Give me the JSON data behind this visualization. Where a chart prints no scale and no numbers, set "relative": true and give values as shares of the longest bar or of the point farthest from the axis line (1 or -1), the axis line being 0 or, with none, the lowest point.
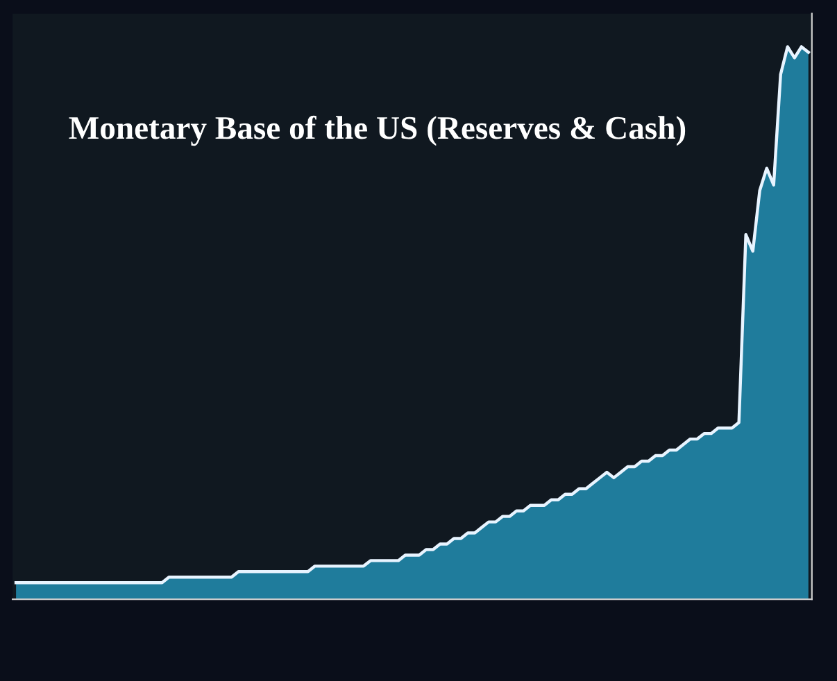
{
  "chart_data": {
    "type": "area",
    "title": "Monetary Base of the US (Reserves & Cash)",
    "relative": true,
    "grid": false,
    "legend": false,
    "categories": [
      null,
      null,
      null,
      null,
      null,
      null,
      null,
      null,
      null,
      null,
      null,
      null,
      null,
      null,
      null,
      null,
      null,
      null,
      null,
      null,
      null,
      null,
      null,
      null,
      null,
      null,
      null,
      null,
      null,
      null,
      null,
      null,
      null,
      null,
      null,
      null,
      null,
      null,
      null,
      null,
      null,
      null,
      null,
      null,
      null,
      null,
      null,
      null,
      null,
      null,
      null,
      null,
      null,
      null,
      null,
      null,
      null,
      null,
      null,
      null,
      null,
      null,
      null,
      null,
      null,
      null,
      null,
      null,
      null,
      null,
      null,
      null,
      null,
      null,
      null,
      null,
      null,
      null,
      null,
      null,
      null,
      null,
      null,
      null,
      null,
      null,
      null,
      null,
      null,
      null,
      null,
      null,
      null,
      null,
      null,
      null,
      null,
      null,
      null,
      null,
      null,
      null,
      null,
      null,
      null,
      null,
      null,
      null,
      null,
      null,
      null,
      null,
      null,
      null,
      null
    ],
    "series": [
      {
        "color": "#1f7c9c",
        "values": [
          0.03,
          0.03,
          0.03,
          0.03,
          0.03,
          0.03,
          0.03,
          0.03,
          0.03,
          0.03,
          0.03,
          0.03,
          0.03,
          0.03,
          0.03,
          0.03,
          0.03,
          0.03,
          0.03,
          0.03,
          0.03,
          0.03,
          0.04,
          0.04,
          0.04,
          0.04,
          0.04,
          0.04,
          0.04,
          0.04,
          0.04,
          0.04,
          0.05,
          0.05,
          0.05,
          0.05,
          0.05,
          0.05,
          0.05,
          0.05,
          0.05,
          0.05,
          0.05,
          0.06,
          0.06,
          0.06,
          0.06,
          0.06,
          0.06,
          0.06,
          0.06,
          0.07,
          0.07,
          0.07,
          0.07,
          0.07,
          0.08,
          0.08,
          0.08,
          0.09,
          0.09,
          0.1,
          0.1,
          0.11,
          0.11,
          0.12,
          0.12,
          0.13,
          0.14,
          0.14,
          0.15,
          0.15,
          0.16,
          0.16,
          0.17,
          0.17,
          0.17,
          0.18,
          0.18,
          0.19,
          0.19,
          0.2,
          0.2,
          0.21,
          0.22,
          0.23,
          0.22,
          0.23,
          0.24,
          0.24,
          0.25,
          0.25,
          0.26,
          0.26,
          0.27,
          0.27,
          0.28,
          0.29,
          0.29,
          0.3,
          0.3,
          0.31,
          0.31,
          0.31,
          0.32,
          0.66,
          0.63,
          0.74,
          0.78,
          0.75,
          0.95,
          1,
          0.98,
          1,
          0.99
        ]
      }
    ]
  }
}
